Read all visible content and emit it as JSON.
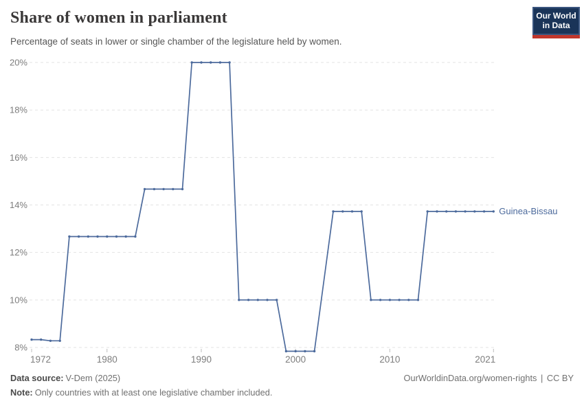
{
  "header": {
    "title": "Share of women in parliament",
    "subtitle": "Percentage of seats in lower or single chamber of the legislature held by women.",
    "logo": {
      "line1": "Our World",
      "line2": "in Data"
    }
  },
  "colors": {
    "line_blue": "#4c6a9c",
    "logo_navy": "#1a3458",
    "logo_red": "#c0362c"
  },
  "chart_data": {
    "type": "line",
    "title": "Share of women in parliament",
    "subtitle": "Percentage of seats in lower or single chamber of the legislature held by women.",
    "xlabel": "",
    "ylabel": "",
    "xlim": [
      1972,
      2021
    ],
    "ylim": [
      8,
      20
    ],
    "grid": true,
    "legend_position": "end-of-line",
    "x_ticks": [
      1972,
      1980,
      1990,
      2000,
      2010,
      2021
    ],
    "y_ticks": [
      8,
      10,
      12,
      14,
      16,
      18,
      20
    ],
    "y_tick_suffix": "%",
    "series": [
      {
        "name": "Guinea-Bissau",
        "color": "#4c6a9c",
        "points": [
          [
            1972,
            8.33
          ],
          [
            1973,
            8.33
          ],
          [
            1974,
            8.28
          ],
          [
            1975,
            8.28
          ],
          [
            1976,
            12.67
          ],
          [
            1977,
            12.67
          ],
          [
            1978,
            12.67
          ],
          [
            1979,
            12.67
          ],
          [
            1980,
            12.67
          ],
          [
            1981,
            12.67
          ],
          [
            1982,
            12.67
          ],
          [
            1983,
            12.67
          ],
          [
            1984,
            14.67
          ],
          [
            1985,
            14.67
          ],
          [
            1986,
            14.67
          ],
          [
            1987,
            14.67
          ],
          [
            1988,
            14.67
          ],
          [
            1989,
            20
          ],
          [
            1990,
            20
          ],
          [
            1991,
            20
          ],
          [
            1992,
            20
          ],
          [
            1993,
            20
          ],
          [
            1994,
            10
          ],
          [
            1995,
            10
          ],
          [
            1996,
            10
          ],
          [
            1997,
            10
          ],
          [
            1998,
            10
          ],
          [
            1999,
            7.84
          ],
          [
            2000,
            7.84
          ],
          [
            2001,
            7.84
          ],
          [
            2002,
            7.84
          ],
          [
            2004,
            13.73
          ],
          [
            2005,
            13.73
          ],
          [
            2006,
            13.73
          ],
          [
            2007,
            13.73
          ],
          [
            2008,
            10
          ],
          [
            2009,
            10
          ],
          [
            2010,
            10
          ],
          [
            2011,
            10
          ],
          [
            2012,
            10
          ],
          [
            2013,
            10
          ],
          [
            2014,
            13.73
          ],
          [
            2015,
            13.73
          ],
          [
            2016,
            13.73
          ],
          [
            2017,
            13.73
          ],
          [
            2018,
            13.73
          ],
          [
            2019,
            13.73
          ],
          [
            2020,
            13.73
          ],
          [
            2021,
            13.73
          ]
        ]
      }
    ]
  },
  "footer": {
    "source_label": "Data source:",
    "source_value": "V-Dem (2025)",
    "note_label": "Note:",
    "note_value": "Only countries with at least one legislative chamber included.",
    "link": "OurWorldinData.org/women-rights",
    "separator": "|",
    "license": "CC BY"
  }
}
